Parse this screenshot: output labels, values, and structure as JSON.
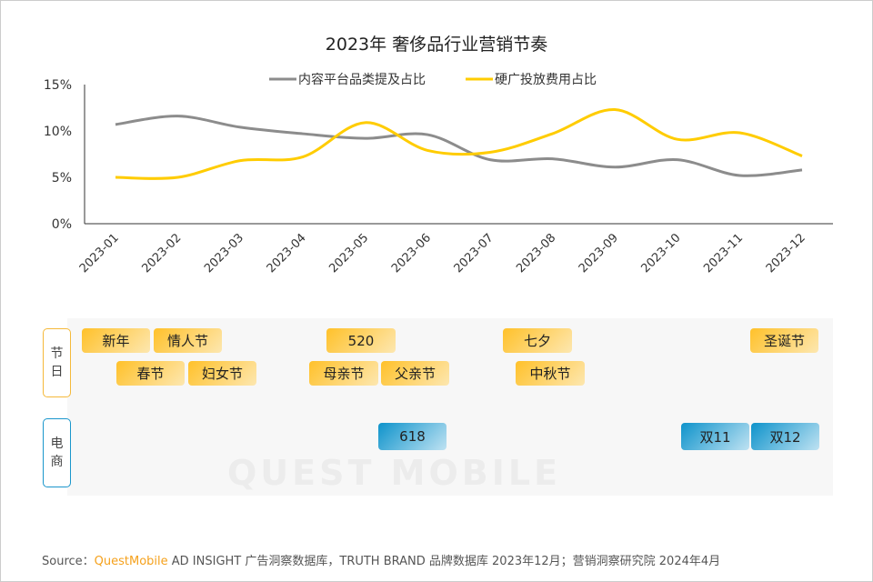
{
  "chart_data": {
    "type": "line",
    "title": "2023年 奢侈品行业营销节奏",
    "categories": [
      "2023-01",
      "2023-02",
      "2023-03",
      "2023-04",
      "2023-05",
      "2023-06",
      "2023-07",
      "2023-08",
      "2023-09",
      "2023-10",
      "2023-11",
      "2023-12"
    ],
    "yticks": [
      "0%",
      "5%",
      "10%",
      "15%"
    ],
    "ylim": [
      0,
      15
    ],
    "legend_position": "top",
    "series": [
      {
        "name": "内容平台品类提及占比",
        "color": "#8c8c8c",
        "values": [
          10.7,
          11.6,
          10.4,
          9.7,
          9.2,
          9.6,
          6.9,
          7.0,
          6.1,
          6.9,
          5.2,
          5.8
        ]
      },
      {
        "name": "硬广投放费用占比",
        "color": "#ffcc00",
        "values": [
          5.0,
          5.0,
          6.8,
          7.2,
          10.9,
          7.9,
          7.7,
          9.7,
          12.3,
          9.1,
          9.8,
          7.3
        ]
      }
    ]
  },
  "events": {
    "holiday_label": "节日",
    "ecommerce_label": "电商",
    "holidays": [
      "新年",
      "情人节",
      "春节",
      "妇女节",
      "520",
      "母亲节",
      "父亲节",
      "七夕",
      "中秋节",
      "圣诞节"
    ],
    "ecommerce": [
      "618",
      "双11",
      "双12"
    ]
  },
  "footer": {
    "prefix": "Source：",
    "brand": "QuestMobile",
    "rest": " AD INSIGHT 广告洞察数据库，TRUTH BRAND 品牌数据库  2023年12月；营销洞察研究院 2024年4月"
  },
  "watermark": "QUEST MOBILE"
}
